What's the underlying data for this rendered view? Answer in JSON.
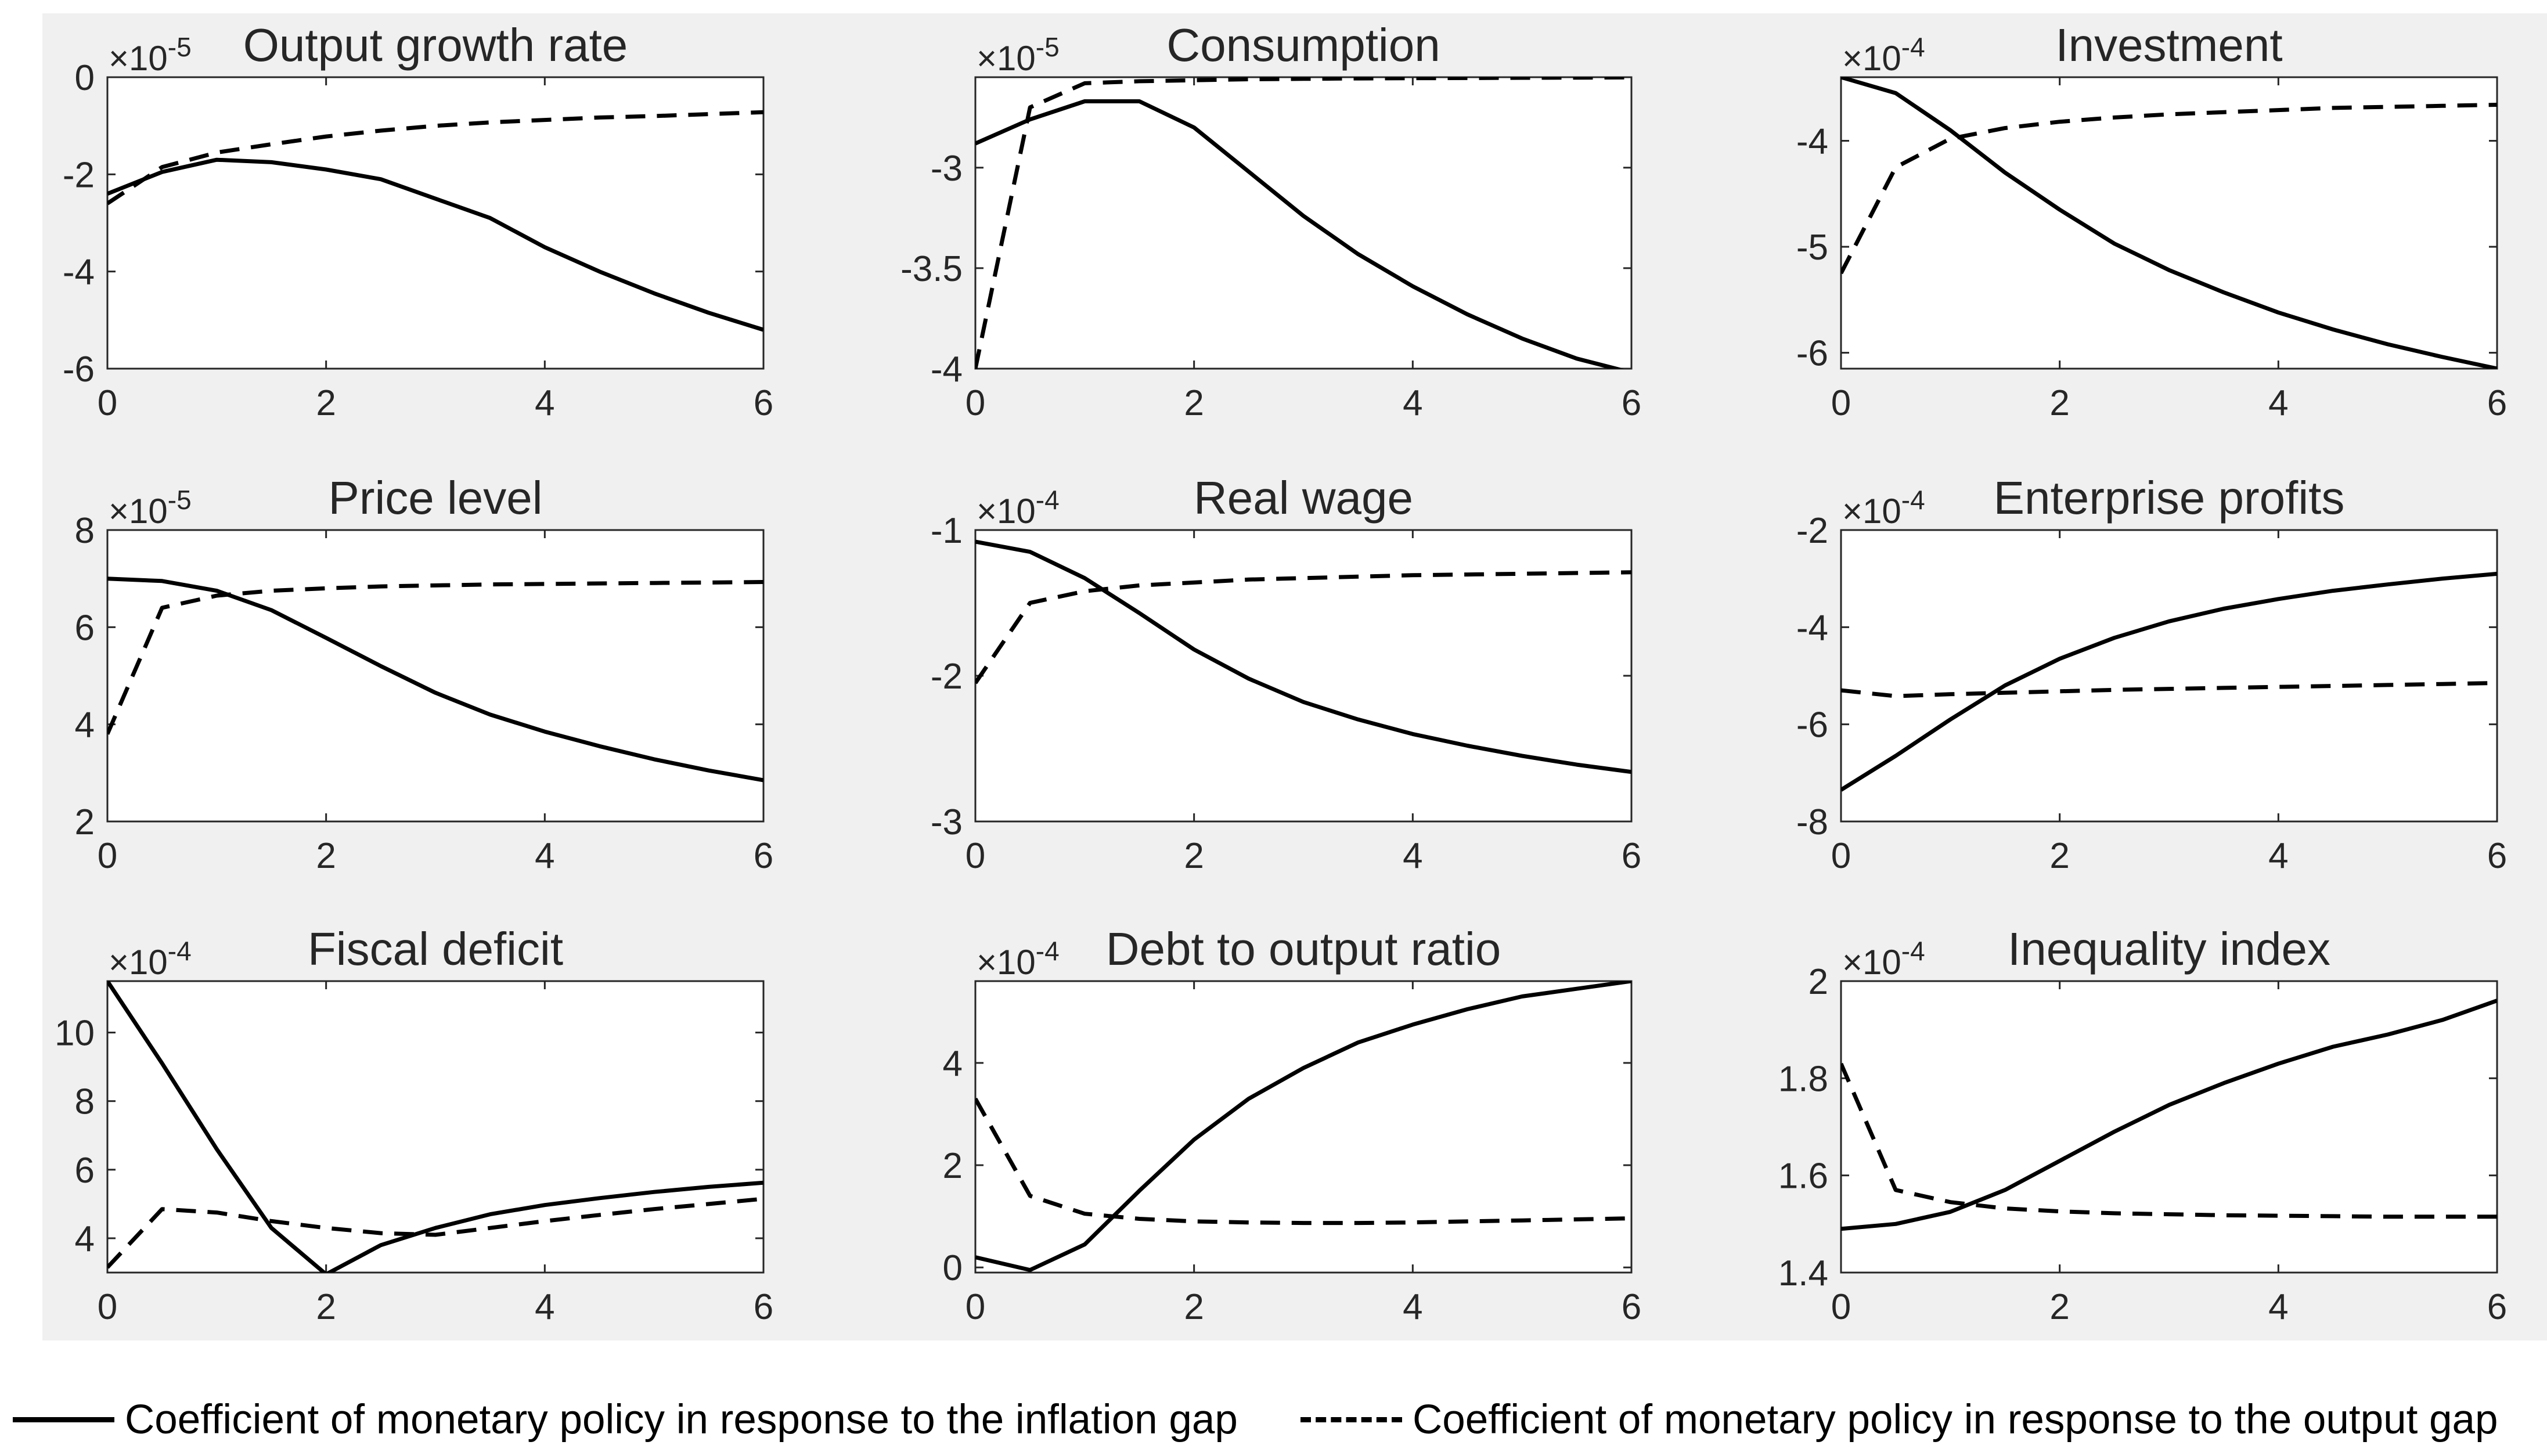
{
  "chart_data": [
    {
      "type": "line",
      "title": "Output growth rate",
      "exponent_label": "×10",
      "exponent": "-5",
      "xlim": [
        0,
        6
      ],
      "ylim": [
        -6,
        0
      ],
      "xticks": [
        0,
        2,
        4,
        6
      ],
      "yticks": [
        0,
        -2,
        -4,
        -6
      ],
      "series": [
        {
          "name": "inflation",
          "x": [
            0,
            0.5,
            1,
            1.5,
            2,
            2.5,
            3,
            3.5,
            4,
            4.5,
            5,
            5.5,
            6
          ],
          "values": [
            -2.4,
            -1.95,
            -1.7,
            -1.75,
            -1.9,
            -2.1,
            -2.5,
            -2.9,
            -3.5,
            -4.0,
            -4.45,
            -4.85,
            -5.2
          ]
        },
        {
          "name": "output",
          "x": [
            0,
            0.5,
            1,
            1.5,
            2,
            2.5,
            3,
            3.5,
            4,
            4.5,
            5,
            5.5,
            6
          ],
          "values": [
            -2.6,
            -1.85,
            -1.55,
            -1.38,
            -1.22,
            -1.1,
            -1.0,
            -0.93,
            -0.88,
            -0.83,
            -0.8,
            -0.76,
            -0.72
          ]
        }
      ]
    },
    {
      "type": "line",
      "title": "Consumption",
      "exponent_label": "×10",
      "exponent": "-5",
      "xlim": [
        0,
        6
      ],
      "ylim": [
        -4,
        -2.55
      ],
      "xticks": [
        0,
        2,
        4,
        6
      ],
      "yticks": [
        -3,
        -3.5,
        -4
      ],
      "series": [
        {
          "name": "inflation",
          "x": [
            0,
            0.5,
            1,
            1.5,
            2,
            2.5,
            3,
            3.5,
            4,
            4.5,
            5,
            5.5,
            6
          ],
          "values": [
            -2.88,
            -2.76,
            -2.67,
            -2.67,
            -2.8,
            -3.02,
            -3.24,
            -3.43,
            -3.59,
            -3.73,
            -3.85,
            -3.95,
            -4.02
          ]
        },
        {
          "name": "output",
          "x": [
            0,
            0.5,
            1,
            1.5,
            2,
            2.5,
            3,
            3.5,
            4,
            4.5,
            5,
            5.5,
            6
          ],
          "values": [
            -4.0,
            -2.7,
            -2.58,
            -2.57,
            -2.565,
            -2.56,
            -2.558,
            -2.556,
            -2.555,
            -2.554,
            -2.553,
            -2.552,
            -2.551
          ]
        }
      ]
    },
    {
      "type": "line",
      "title": "Investment",
      "exponent_label": "×10",
      "exponent": "-4",
      "xlim": [
        0,
        6
      ],
      "ylim": [
        -6.15,
        -3.4
      ],
      "xticks": [
        0,
        2,
        4,
        6
      ],
      "yticks": [
        -4,
        -5,
        -6
      ],
      "series": [
        {
          "name": "inflation",
          "x": [
            0,
            0.5,
            1,
            1.5,
            2,
            2.5,
            3,
            3.5,
            4,
            4.5,
            5,
            5.5,
            6
          ],
          "values": [
            -3.4,
            -3.55,
            -3.9,
            -4.3,
            -4.65,
            -4.97,
            -5.22,
            -5.43,
            -5.62,
            -5.78,
            -5.92,
            -6.04,
            -6.15
          ]
        },
        {
          "name": "output",
          "x": [
            0,
            0.5,
            1,
            1.5,
            2,
            2.5,
            3,
            3.5,
            4,
            4.5,
            5,
            5.5,
            6
          ],
          "values": [
            -5.25,
            -4.25,
            -3.98,
            -3.88,
            -3.82,
            -3.78,
            -3.75,
            -3.73,
            -3.71,
            -3.69,
            -3.68,
            -3.67,
            -3.66
          ]
        }
      ]
    },
    {
      "type": "line",
      "title": "Price level",
      "exponent_label": "×10",
      "exponent": "-5",
      "xlim": [
        0,
        6
      ],
      "ylim": [
        2,
        8
      ],
      "xticks": [
        0,
        2,
        4,
        6
      ],
      "yticks": [
        8,
        6,
        4,
        2
      ],
      "series": [
        {
          "name": "inflation",
          "x": [
            0,
            0.5,
            1,
            1.5,
            2,
            2.5,
            3,
            3.5,
            4,
            4.5,
            5,
            5.5,
            6
          ],
          "values": [
            7.0,
            6.95,
            6.75,
            6.35,
            5.78,
            5.2,
            4.65,
            4.2,
            3.85,
            3.55,
            3.28,
            3.05,
            2.85
          ]
        },
        {
          "name": "output",
          "x": [
            0,
            0.5,
            1,
            1.5,
            2,
            2.5,
            3,
            3.5,
            4,
            4.5,
            5,
            5.5,
            6
          ],
          "values": [
            3.8,
            6.4,
            6.65,
            6.75,
            6.8,
            6.84,
            6.86,
            6.88,
            6.89,
            6.9,
            6.91,
            6.92,
            6.93
          ]
        }
      ]
    },
    {
      "type": "line",
      "title": "Real wage",
      "exponent_label": "×10",
      "exponent": "-4",
      "xlim": [
        0,
        6
      ],
      "ylim": [
        -3,
        -1
      ],
      "xticks": [
        0,
        2,
        4,
        6
      ],
      "yticks": [
        -1,
        -2,
        -3
      ],
      "series": [
        {
          "name": "inflation",
          "x": [
            0,
            0.5,
            1,
            1.5,
            2,
            2.5,
            3,
            3.5,
            4,
            4.5,
            5,
            5.5,
            6
          ],
          "values": [
            -1.08,
            -1.15,
            -1.33,
            -1.57,
            -1.82,
            -2.02,
            -2.18,
            -2.3,
            -2.4,
            -2.48,
            -2.55,
            -2.61,
            -2.66
          ]
        },
        {
          "name": "output",
          "x": [
            0,
            0.5,
            1,
            1.5,
            2,
            2.5,
            3,
            3.5,
            4,
            4.5,
            5,
            5.5,
            6
          ],
          "values": [
            -2.05,
            -1.5,
            -1.42,
            -1.38,
            -1.36,
            -1.34,
            -1.33,
            -1.32,
            -1.31,
            -1.305,
            -1.3,
            -1.295,
            -1.29
          ]
        }
      ]
    },
    {
      "type": "line",
      "title": "Enterprise profits",
      "exponent_label": "×10",
      "exponent": "-4",
      "xlim": [
        0,
        6
      ],
      "ylim": [
        -8,
        -2
      ],
      "xticks": [
        0,
        2,
        4,
        6
      ],
      "yticks": [
        -2,
        -4,
        -6,
        -8
      ],
      "series": [
        {
          "name": "inflation",
          "x": [
            0,
            0.5,
            1,
            1.5,
            2,
            2.5,
            3,
            3.5,
            4,
            4.5,
            5,
            5.5,
            6
          ],
          "values": [
            -7.35,
            -6.65,
            -5.9,
            -5.2,
            -4.65,
            -4.22,
            -3.88,
            -3.62,
            -3.42,
            -3.25,
            -3.12,
            -3.0,
            -2.9
          ]
        },
        {
          "name": "output",
          "x": [
            0,
            0.5,
            1,
            1.5,
            2,
            2.5,
            3,
            3.5,
            4,
            4.5,
            5,
            5.5,
            6
          ],
          "values": [
            -5.3,
            -5.42,
            -5.38,
            -5.35,
            -5.32,
            -5.29,
            -5.27,
            -5.25,
            -5.23,
            -5.21,
            -5.19,
            -5.17,
            -5.15
          ]
        }
      ]
    },
    {
      "type": "line",
      "title": "Fiscal deficit",
      "exponent_label": "×10",
      "exponent": "-4",
      "xlim": [
        0,
        6
      ],
      "ylim": [
        3,
        11.5
      ],
      "xticks": [
        0,
        2,
        4,
        6
      ],
      "yticks": [
        10,
        8,
        6,
        4
      ],
      "series": [
        {
          "name": "inflation",
          "x": [
            0,
            0.5,
            1,
            1.5,
            2,
            2.5,
            3,
            3.5,
            4,
            4.5,
            5,
            5.5,
            6
          ],
          "values": [
            11.5,
            9.1,
            6.6,
            4.3,
            2.95,
            3.8,
            4.3,
            4.7,
            4.97,
            5.17,
            5.35,
            5.5,
            5.62
          ]
        },
        {
          "name": "output",
          "x": [
            0,
            0.5,
            1,
            1.5,
            2,
            2.5,
            3,
            3.5,
            4,
            4.5,
            5,
            5.5,
            6
          ],
          "values": [
            3.15,
            4.85,
            4.75,
            4.5,
            4.3,
            4.15,
            4.1,
            4.3,
            4.5,
            4.68,
            4.85,
            5.0,
            5.15
          ]
        }
      ]
    },
    {
      "type": "line",
      "title": "Debt to output ratio",
      "exponent_label": "×10",
      "exponent": "-4",
      "xlim": [
        0,
        6
      ],
      "ylim": [
        -0.1,
        5.6
      ],
      "xticks": [
        0,
        2,
        4,
        6
      ],
      "yticks": [
        4,
        2,
        0
      ],
      "series": [
        {
          "name": "inflation",
          "x": [
            0,
            0.5,
            1,
            1.5,
            2,
            2.5,
            3,
            3.5,
            4,
            4.5,
            5,
            5.5,
            6
          ],
          "values": [
            0.2,
            -0.05,
            0.45,
            1.5,
            2.5,
            3.3,
            3.9,
            4.4,
            4.75,
            5.05,
            5.3,
            5.45,
            5.6
          ]
        },
        {
          "name": "output",
          "x": [
            0,
            0.5,
            1,
            1.5,
            2,
            2.5,
            3,
            3.5,
            4,
            4.5,
            5,
            5.5,
            6
          ],
          "values": [
            3.3,
            1.4,
            1.05,
            0.95,
            0.9,
            0.88,
            0.87,
            0.87,
            0.88,
            0.9,
            0.92,
            0.94,
            0.96
          ]
        }
      ]
    },
    {
      "type": "line",
      "title": "Inequality index",
      "exponent_label": "×10",
      "exponent": "-4",
      "xlim": [
        0,
        6
      ],
      "ylim": [
        1.4,
        2
      ],
      "xticks": [
        0,
        2,
        4,
        6
      ],
      "yticks": [
        2,
        1.8,
        1.6,
        1.4
      ],
      "series": [
        {
          "name": "inflation",
          "x": [
            0,
            0.5,
            1,
            1.5,
            2,
            2.5,
            3,
            3.5,
            4,
            4.5,
            5,
            5.5,
            6
          ],
          "values": [
            1.49,
            1.5,
            1.525,
            1.57,
            1.63,
            1.69,
            1.745,
            1.79,
            1.83,
            1.865,
            1.89,
            1.92,
            1.96
          ]
        },
        {
          "name": "output",
          "x": [
            0,
            0.5,
            1,
            1.5,
            2,
            2.5,
            3,
            3.5,
            4,
            4.5,
            5,
            5.5,
            6
          ],
          "values": [
            1.83,
            1.57,
            1.545,
            1.532,
            1.526,
            1.522,
            1.52,
            1.518,
            1.517,
            1.516,
            1.515,
            1.515,
            1.515
          ]
        }
      ]
    }
  ],
  "legend": {
    "solid_label": "Coefficient of monetary policy in response to the inflation gap",
    "dashed_label": "Coefficient of monetary policy in response to the output gap"
  }
}
